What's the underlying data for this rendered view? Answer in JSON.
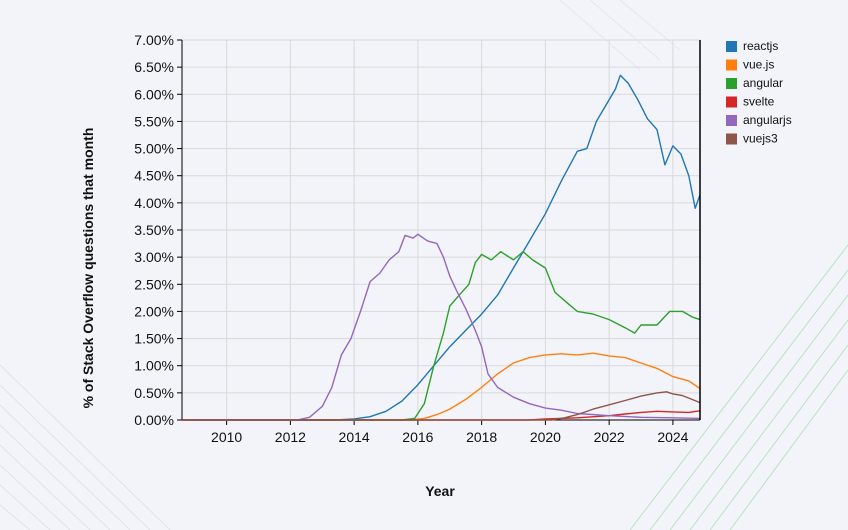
{
  "chart_data": {
    "type": "line",
    "xlabel": "Year",
    "ylabel": "% of Stack Overflow questions that month",
    "xlim": [
      2008.6,
      2024.85
    ],
    "ylim": [
      0,
      7
    ],
    "x_ticks": [
      2010,
      2012,
      2014,
      2016,
      2018,
      2020,
      2022,
      2024
    ],
    "y_ticks": [
      0,
      0.5,
      1,
      1.5,
      2,
      2.5,
      3,
      3.5,
      4,
      4.5,
      5,
      5.5,
      6,
      6.5,
      7
    ],
    "y_tick_format": "percent_2dp",
    "grid": true,
    "legend_position": "right",
    "series": [
      {
        "name": "reactjs",
        "color": "#1f77b4",
        "points": [
          [
            2008.6,
            0
          ],
          [
            2013.4,
            0
          ],
          [
            2014,
            0.02
          ],
          [
            2014.5,
            0.06
          ],
          [
            2015,
            0.16
          ],
          [
            2015.5,
            0.35
          ],
          [
            2016,
            0.65
          ],
          [
            2016.5,
            1.0
          ],
          [
            2017,
            1.35
          ],
          [
            2017.5,
            1.65
          ],
          [
            2018,
            1.95
          ],
          [
            2018.5,
            2.3
          ],
          [
            2019,
            2.8
          ],
          [
            2019.5,
            3.3
          ],
          [
            2020,
            3.8
          ],
          [
            2020.5,
            4.4
          ],
          [
            2021,
            4.95
          ],
          [
            2021.3,
            5.0
          ],
          [
            2021.6,
            5.5
          ],
          [
            2021.9,
            5.8
          ],
          [
            2022.2,
            6.1
          ],
          [
            2022.35,
            6.35
          ],
          [
            2022.6,
            6.2
          ],
          [
            2022.9,
            5.9
          ],
          [
            2023.2,
            5.55
          ],
          [
            2023.5,
            5.35
          ],
          [
            2023.75,
            4.7
          ],
          [
            2024.0,
            5.05
          ],
          [
            2024.25,
            4.9
          ],
          [
            2024.5,
            4.5
          ],
          [
            2024.7,
            3.9
          ],
          [
            2024.85,
            4.15
          ]
        ]
      },
      {
        "name": "vue.js",
        "color": "#ff7f0e",
        "points": [
          [
            2008.6,
            0
          ],
          [
            2015.8,
            0
          ],
          [
            2016.2,
            0.03
          ],
          [
            2016.6,
            0.1
          ],
          [
            2017,
            0.2
          ],
          [
            2017.5,
            0.38
          ],
          [
            2018,
            0.6
          ],
          [
            2018.5,
            0.85
          ],
          [
            2019,
            1.05
          ],
          [
            2019.5,
            1.15
          ],
          [
            2020,
            1.2
          ],
          [
            2020.5,
            1.22
          ],
          [
            2021,
            1.2
          ],
          [
            2021.5,
            1.23
          ],
          [
            2022,
            1.18
          ],
          [
            2022.5,
            1.15
          ],
          [
            2023,
            1.05
          ],
          [
            2023.5,
            0.95
          ],
          [
            2024,
            0.8
          ],
          [
            2024.5,
            0.72
          ],
          [
            2024.85,
            0.58
          ]
        ]
      },
      {
        "name": "angular",
        "color": "#2ca02c",
        "points": [
          [
            2008.6,
            0
          ],
          [
            2015.5,
            0
          ],
          [
            2015.9,
            0.03
          ],
          [
            2016.2,
            0.3
          ],
          [
            2016.5,
            1.0
          ],
          [
            2016.8,
            1.6
          ],
          [
            2017.0,
            2.1
          ],
          [
            2017.3,
            2.3
          ],
          [
            2017.6,
            2.5
          ],
          [
            2017.8,
            2.9
          ],
          [
            2018.0,
            3.05
          ],
          [
            2018.3,
            2.95
          ],
          [
            2018.6,
            3.1
          ],
          [
            2019.0,
            2.95
          ],
          [
            2019.3,
            3.1
          ],
          [
            2019.6,
            2.95
          ],
          [
            2020.0,
            2.8
          ],
          [
            2020.3,
            2.35
          ],
          [
            2020.7,
            2.15
          ],
          [
            2021.0,
            2.0
          ],
          [
            2021.5,
            1.95
          ],
          [
            2022.0,
            1.85
          ],
          [
            2022.5,
            1.7
          ],
          [
            2022.8,
            1.6
          ],
          [
            2023.0,
            1.75
          ],
          [
            2023.5,
            1.75
          ],
          [
            2023.9,
            2.0
          ],
          [
            2024.3,
            2.0
          ],
          [
            2024.6,
            1.9
          ],
          [
            2024.85,
            1.85
          ]
        ]
      },
      {
        "name": "svelte",
        "color": "#d62728",
        "points": [
          [
            2008.6,
            0
          ],
          [
            2019.5,
            0
          ],
          [
            2020,
            0.02
          ],
          [
            2021,
            0.04
          ],
          [
            2022,
            0.08
          ],
          [
            2022.5,
            0.11
          ],
          [
            2023,
            0.14
          ],
          [
            2023.5,
            0.16
          ],
          [
            2024,
            0.15
          ],
          [
            2024.5,
            0.14
          ],
          [
            2024.85,
            0.17
          ]
        ]
      },
      {
        "name": "angularjs",
        "color": "#9467bd",
        "points": [
          [
            2008.6,
            0
          ],
          [
            2012.2,
            0
          ],
          [
            2012.6,
            0.05
          ],
          [
            2013.0,
            0.25
          ],
          [
            2013.3,
            0.6
          ],
          [
            2013.6,
            1.2
          ],
          [
            2013.9,
            1.5
          ],
          [
            2014.2,
            2.0
          ],
          [
            2014.5,
            2.55
          ],
          [
            2014.8,
            2.7
          ],
          [
            2015.1,
            2.95
          ],
          [
            2015.4,
            3.1
          ],
          [
            2015.6,
            3.4
          ],
          [
            2015.85,
            3.35
          ],
          [
            2016.0,
            3.42
          ],
          [
            2016.3,
            3.3
          ],
          [
            2016.6,
            3.25
          ],
          [
            2016.8,
            3.0
          ],
          [
            2017.0,
            2.65
          ],
          [
            2017.2,
            2.4
          ],
          [
            2017.5,
            2.05
          ],
          [
            2017.8,
            1.65
          ],
          [
            2018.0,
            1.35
          ],
          [
            2018.2,
            0.85
          ],
          [
            2018.5,
            0.6
          ],
          [
            2019.0,
            0.42
          ],
          [
            2019.5,
            0.3
          ],
          [
            2020.0,
            0.22
          ],
          [
            2020.5,
            0.18
          ],
          [
            2021.0,
            0.12
          ],
          [
            2022.0,
            0.08
          ],
          [
            2023.0,
            0.05
          ],
          [
            2024.0,
            0.04
          ],
          [
            2024.85,
            0.03
          ]
        ]
      },
      {
        "name": "vuejs3",
        "color": "#8c564b",
        "points": [
          [
            2008.6,
            0
          ],
          [
            2020.2,
            0
          ],
          [
            2020.6,
            0.04
          ],
          [
            2021.0,
            0.1
          ],
          [
            2021.5,
            0.2
          ],
          [
            2022.0,
            0.28
          ],
          [
            2022.5,
            0.36
          ],
          [
            2023.0,
            0.44
          ],
          [
            2023.5,
            0.5
          ],
          [
            2023.8,
            0.52
          ],
          [
            2024.0,
            0.48
          ],
          [
            2024.3,
            0.45
          ],
          [
            2024.6,
            0.38
          ],
          [
            2024.85,
            0.32
          ]
        ]
      }
    ]
  }
}
